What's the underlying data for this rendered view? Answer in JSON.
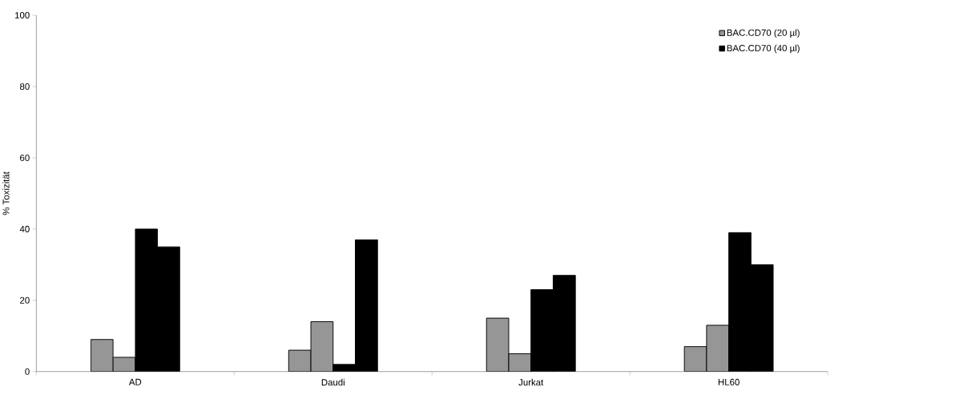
{
  "chart_data": {
    "type": "bar",
    "ylabel": "% Toxizität",
    "categories": [
      "AD",
      "Daudi",
      "Jurkat",
      "HL60"
    ],
    "series": [
      {
        "name": "BAC.CD70 (20 µl)",
        "color": "#969696",
        "values": [
          9,
          6,
          15,
          7
        ]
      },
      {
        "color": "#969696",
        "values": [
          4,
          14,
          5,
          13
        ]
      },
      {
        "name": "BAC.CD70 (40 µl)",
        "color": "#000000",
        "values": [
          40,
          2,
          23,
          39
        ]
      },
      {
        "color": "#000000",
        "values": [
          35,
          37,
          27,
          30
        ]
      }
    ],
    "ylim": [
      0,
      100
    ],
    "yticks": [
      0,
      20,
      40,
      60,
      80,
      100
    ],
    "legend": "top right"
  }
}
